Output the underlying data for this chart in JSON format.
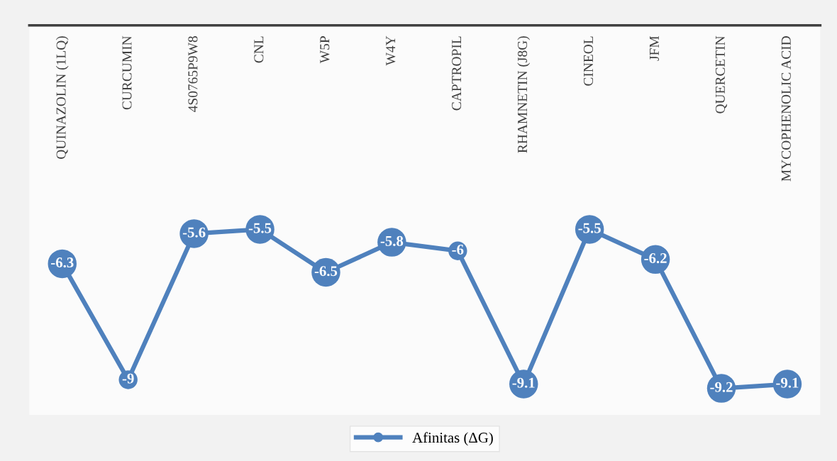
{
  "chart_data": {
    "type": "line",
    "categories": [
      "QUINAZOLIN (1LQ)",
      "CURCUMIN",
      "4S0765P9W8",
      "CNL",
      "W5P",
      "W4Y",
      "CAPTROPIL",
      "RHAMNETIN (J8G)",
      "CINEOL",
      "JFM",
      "QUERCETIN",
      "MYCOPHENOLIC ACID"
    ],
    "series": [
      {
        "name": "Afinitas (ΔG)",
        "color": "#4f81bd",
        "values": [
          -6.3,
          -9,
          -5.6,
          -5.5,
          -6.5,
          -5.8,
          -6,
          -9.1,
          -5.5,
          -6.2,
          -9.2,
          -9.1
        ]
      }
    ],
    "tick_labels": "x",
    "data_labels": true,
    "marker": "circle",
    "line_style": "solid",
    "legend": "bottom",
    "grid": false
  }
}
